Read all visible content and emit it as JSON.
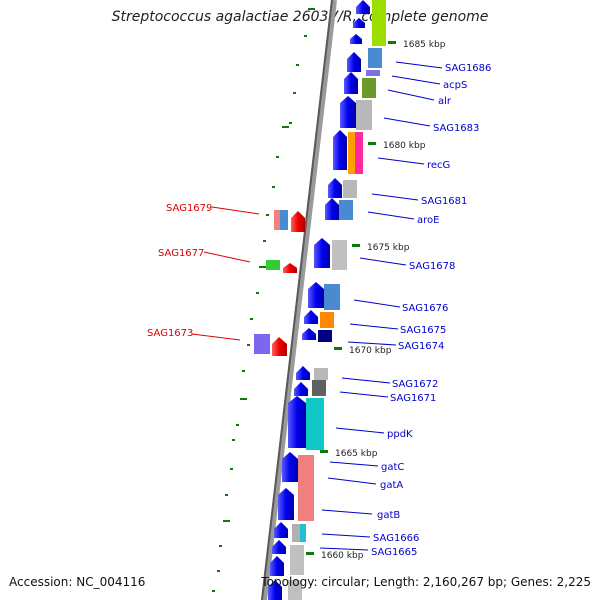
{
  "title": "Streptococcus agalactiae 2603V/R, complete genome",
  "accession": "Accession: NC_004116",
  "summary": "Topology: circular; Length: 2,160,267 bp; Genes: 2,225",
  "colors": {
    "forward_label": "#0000cc",
    "reverse_label": "#dd0000",
    "arrow_forward": "#0000ee",
    "arrow_reverse": "#ee0000",
    "tick": "#0a7a0a",
    "backbone": "#777777"
  },
  "position_labels": [
    {
      "text": "1685 kbp"
    },
    {
      "text": "1680 kbp"
    },
    {
      "text": "1675 kbp"
    },
    {
      "text": "1670 kbp"
    },
    {
      "text": "1665 kbp"
    },
    {
      "text": "1660 kbp"
    }
  ],
  "genes_forward": [
    {
      "name": "SAG1686"
    },
    {
      "name": "acpS"
    },
    {
      "name": "alr"
    },
    {
      "name": "SAG1683"
    },
    {
      "name": "recG"
    },
    {
      "name": "SAG1681"
    },
    {
      "name": "aroE"
    },
    {
      "name": "SAG1678"
    },
    {
      "name": "SAG1676"
    },
    {
      "name": "SAG1675"
    },
    {
      "name": "SAG1674"
    },
    {
      "name": "SAG1672"
    },
    {
      "name": "SAG1671"
    },
    {
      "name": "ppdK"
    },
    {
      "name": "gatC"
    },
    {
      "name": "gatA"
    },
    {
      "name": "gatB"
    },
    {
      "name": "SAG1666"
    },
    {
      "name": "SAG1665"
    }
  ],
  "genes_reverse": [
    {
      "name": "SAG1679"
    },
    {
      "name": "SAG1677"
    },
    {
      "name": "SAG1673"
    }
  ]
}
